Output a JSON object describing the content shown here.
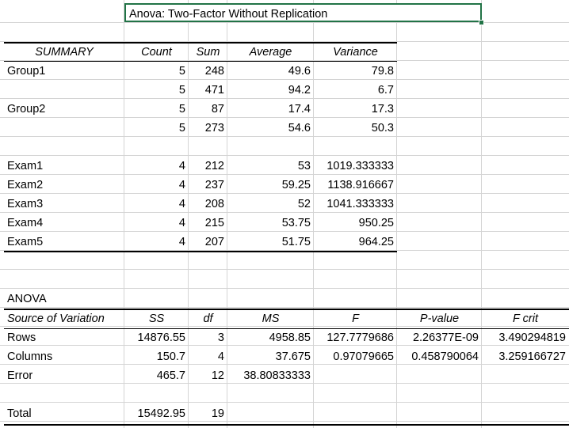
{
  "title": "Anova: Two-Factor Without Replication",
  "summary": {
    "headers": [
      "SUMMARY",
      "Count",
      "Sum",
      "Average",
      "Variance"
    ],
    "rows": [
      [
        "Group1",
        "5",
        "248",
        "49.6",
        "79.8"
      ],
      [
        "",
        "5",
        "471",
        "94.2",
        "6.7"
      ],
      [
        "Group2",
        "5",
        "87",
        "17.4",
        "17.3"
      ],
      [
        "",
        "5",
        "273",
        "54.6",
        "50.3"
      ],
      [
        "Exam1",
        "4",
        "212",
        "53",
        "1019.333333"
      ],
      [
        "Exam2",
        "4",
        "237",
        "59.25",
        "1138.916667"
      ],
      [
        "Exam3",
        "4",
        "208",
        "52",
        "1041.333333"
      ],
      [
        "Exam4",
        "4",
        "215",
        "53.75",
        "950.25"
      ],
      [
        "Exam5",
        "4",
        "207",
        "51.75",
        "964.25"
      ]
    ]
  },
  "anova": {
    "label": "ANOVA",
    "headers": [
      "Source of Variation",
      "SS",
      "df",
      "MS",
      "F",
      "P-value",
      "F crit"
    ],
    "rows": [
      [
        "Rows",
        "14876.55",
        "3",
        "4958.85",
        "127.7779686",
        "2.26377E-09",
        "3.490294819"
      ],
      [
        "Columns",
        "150.7",
        "4",
        "37.675",
        "0.97079665",
        "0.458790064",
        "3.259166727"
      ],
      [
        "Error",
        "465.7",
        "12",
        "38.80833333",
        "",
        "",
        ""
      ]
    ],
    "total": [
      "Total",
      "15492.95",
      "19"
    ]
  }
}
